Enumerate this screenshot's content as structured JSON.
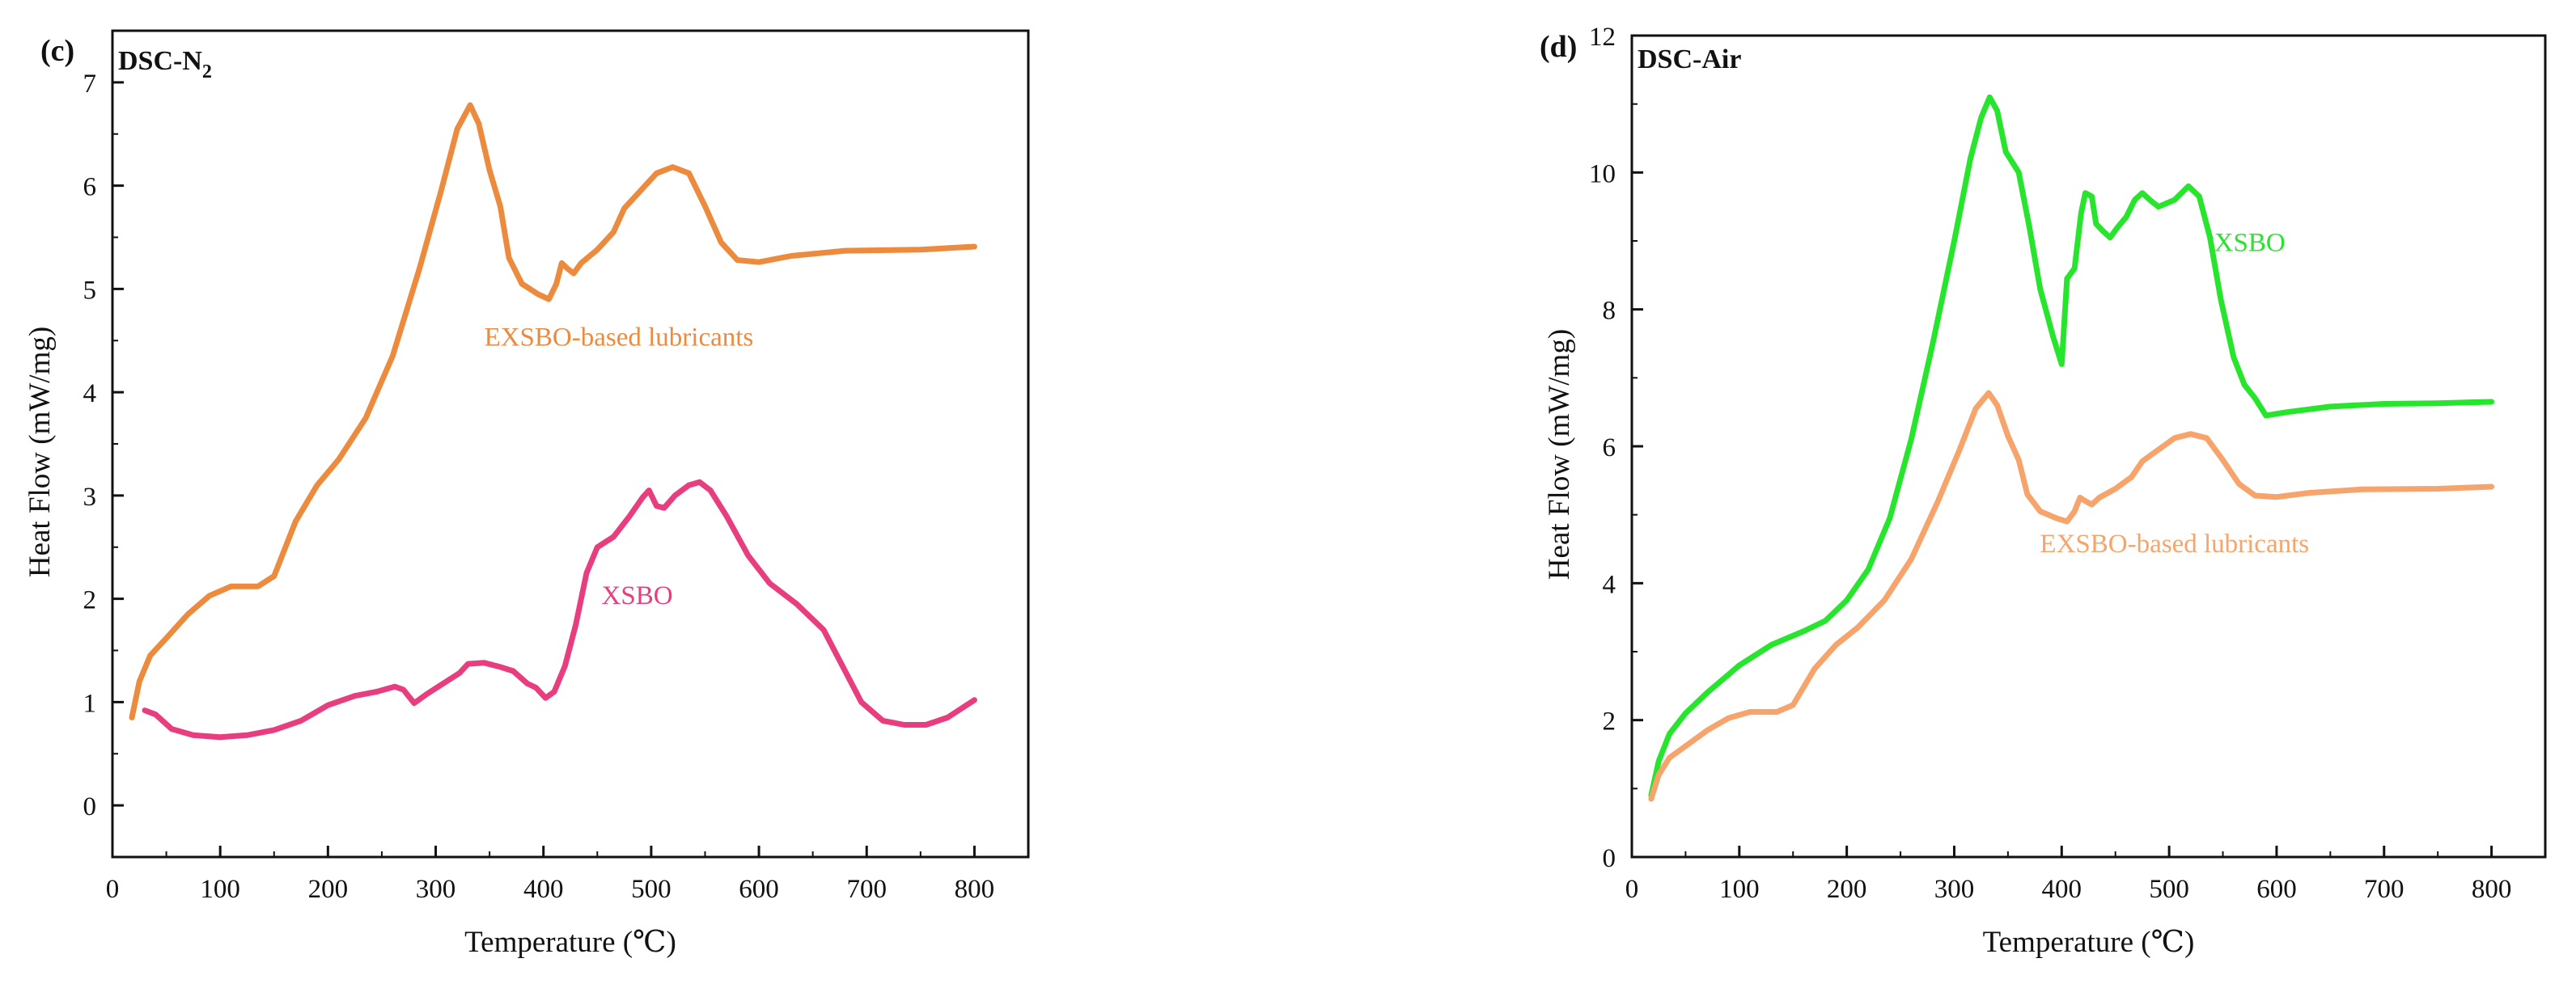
{
  "chart_data": [
    {
      "type": "line",
      "panel_label": "(c)",
      "title": "DSC-N",
      "title_subscript": "2",
      "xlabel": "Temperature (℃)",
      "ylabel": "Heat Flow (mW/mg)",
      "xlim": [
        0,
        850
      ],
      "ylim": [
        -0.5,
        7.5
      ],
      "xticks": [
        0,
        100,
        200,
        300,
        400,
        500,
        600,
        700,
        800
      ],
      "yticks": [
        0,
        1,
        2,
        3,
        4,
        5,
        6,
        7
      ],
      "series": [
        {
          "name": "EXSBO-based lubricants",
          "color": "#ec8a3d",
          "label_pos": [
            470,
            4.45
          ],
          "points": [
            [
              18,
              0.85
            ],
            [
              25,
              1.2
            ],
            [
              35,
              1.45
            ],
            [
              50,
              1.62
            ],
            [
              70,
              1.85
            ],
            [
              90,
              2.03
            ],
            [
              110,
              2.12
            ],
            [
              135,
              2.12
            ],
            [
              150,
              2.22
            ],
            [
              170,
              2.75
            ],
            [
              190,
              3.1
            ],
            [
              210,
              3.35
            ],
            [
              235,
              3.75
            ],
            [
              260,
              4.35
            ],
            [
              285,
              5.2
            ],
            [
              305,
              5.95
            ],
            [
              320,
              6.55
            ],
            [
              332,
              6.78
            ],
            [
              340,
              6.6
            ],
            [
              350,
              6.15
            ],
            [
              360,
              5.8
            ],
            [
              368,
              5.3
            ],
            [
              380,
              5.05
            ],
            [
              395,
              4.95
            ],
            [
              405,
              4.9
            ],
            [
              412,
              5.05
            ],
            [
              417,
              5.25
            ],
            [
              422,
              5.2
            ],
            [
              428,
              5.15
            ],
            [
              435,
              5.25
            ],
            [
              450,
              5.38
            ],
            [
              465,
              5.55
            ],
            [
              475,
              5.78
            ],
            [
              490,
              5.95
            ],
            [
              505,
              6.12
            ],
            [
              520,
              6.18
            ],
            [
              535,
              6.12
            ],
            [
              550,
              5.8
            ],
            [
              565,
              5.45
            ],
            [
              580,
              5.28
            ],
            [
              600,
              5.26
            ],
            [
              630,
              5.32
            ],
            [
              680,
              5.37
            ],
            [
              750,
              5.38
            ],
            [
              800,
              5.41
            ]
          ]
        },
        {
          "name": "XSBO",
          "color": "#e83e7f",
          "label_pos": [
            487,
            1.95
          ],
          "points": [
            [
              30,
              0.92
            ],
            [
              40,
              0.88
            ],
            [
              55,
              0.74
            ],
            [
              75,
              0.68
            ],
            [
              100,
              0.66
            ],
            [
              125,
              0.68
            ],
            [
              150,
              0.73
            ],
            [
              175,
              0.82
            ],
            [
              200,
              0.97
            ],
            [
              225,
              1.06
            ],
            [
              245,
              1.1
            ],
            [
              262,
              1.15
            ],
            [
              270,
              1.12
            ],
            [
              280,
              0.99
            ],
            [
              292,
              1.08
            ],
            [
              310,
              1.2
            ],
            [
              322,
              1.28
            ],
            [
              330,
              1.37
            ],
            [
              345,
              1.38
            ],
            [
              360,
              1.34
            ],
            [
              372,
              1.3
            ],
            [
              385,
              1.18
            ],
            [
              393,
              1.14
            ],
            [
              402,
              1.04
            ],
            [
              410,
              1.1
            ],
            [
              420,
              1.35
            ],
            [
              430,
              1.75
            ],
            [
              440,
              2.25
            ],
            [
              450,
              2.5
            ],
            [
              465,
              2.6
            ],
            [
              480,
              2.8
            ],
            [
              492,
              2.98
            ],
            [
              498,
              3.05
            ],
            [
              505,
              2.9
            ],
            [
              512,
              2.88
            ],
            [
              522,
              3.0
            ],
            [
              535,
              3.1
            ],
            [
              545,
              3.13
            ],
            [
              555,
              3.05
            ],
            [
              570,
              2.8
            ],
            [
              590,
              2.42
            ],
            [
              610,
              2.15
            ],
            [
              635,
              1.95
            ],
            [
              660,
              1.7
            ],
            [
              680,
              1.3
            ],
            [
              695,
              1.0
            ],
            [
              715,
              0.82
            ],
            [
              735,
              0.78
            ],
            [
              755,
              0.78
            ],
            [
              775,
              0.85
            ],
            [
              800,
              1.02
            ]
          ]
        }
      ]
    },
    {
      "type": "line",
      "panel_label": "(d)",
      "title": "DSC-Air",
      "xlabel": "Temperature (℃)",
      "ylabel": "Heat Flow (mW/mg)",
      "xlim": [
        0,
        850
      ],
      "ylim": [
        0,
        12
      ],
      "xticks": [
        0,
        100,
        200,
        300,
        400,
        500,
        600,
        700,
        800
      ],
      "yticks": [
        0,
        2,
        4,
        6,
        8,
        10,
        12
      ],
      "series": [
        {
          "name": "XSBO",
          "color": "#27e52c",
          "label_pos": [
            575,
            8.85
          ],
          "points": [
            [
              18,
              0.9
            ],
            [
              25,
              1.4
            ],
            [
              35,
              1.8
            ],
            [
              50,
              2.1
            ],
            [
              70,
              2.4
            ],
            [
              100,
              2.8
            ],
            [
              130,
              3.1
            ],
            [
              160,
              3.3
            ],
            [
              180,
              3.45
            ],
            [
              200,
              3.75
            ],
            [
              220,
              4.2
            ],
            [
              240,
              4.95
            ],
            [
              260,
              6.1
            ],
            [
              280,
              7.5
            ],
            [
              300,
              9.0
            ],
            [
              315,
              10.2
            ],
            [
              325,
              10.8
            ],
            [
              333,
              11.1
            ],
            [
              340,
              10.9
            ],
            [
              348,
              10.3
            ],
            [
              360,
              10.0
            ],
            [
              370,
              9.2
            ],
            [
              380,
              8.3
            ],
            [
              392,
              7.6
            ],
            [
              400,
              7.2
            ],
            [
              405,
              8.45
            ],
            [
              412,
              8.6
            ],
            [
              418,
              9.4
            ],
            [
              422,
              9.7
            ],
            [
              428,
              9.65
            ],
            [
              432,
              9.25
            ],
            [
              438,
              9.15
            ],
            [
              445,
              9.05
            ],
            [
              452,
              9.2
            ],
            [
              460,
              9.35
            ],
            [
              468,
              9.6
            ],
            [
              475,
              9.7
            ],
            [
              482,
              9.6
            ],
            [
              490,
              9.5
            ],
            [
              505,
              9.6
            ],
            [
              518,
              9.8
            ],
            [
              528,
              9.65
            ],
            [
              538,
              9.05
            ],
            [
              548,
              8.15
            ],
            [
              560,
              7.3
            ],
            [
              570,
              6.9
            ],
            [
              580,
              6.7
            ],
            [
              590,
              6.45
            ],
            [
              610,
              6.5
            ],
            [
              650,
              6.58
            ],
            [
              700,
              6.62
            ],
            [
              750,
              6.63
            ],
            [
              800,
              6.65
            ]
          ]
        },
        {
          "name": "EXSBO-based lubricants",
          "color": "#f7a46c",
          "label_pos": [
            505,
            4.45
          ],
          "points": [
            [
              18,
              0.85
            ],
            [
              25,
              1.2
            ],
            [
              35,
              1.45
            ],
            [
              50,
              1.62
            ],
            [
              70,
              1.85
            ],
            [
              90,
              2.03
            ],
            [
              110,
              2.12
            ],
            [
              135,
              2.12
            ],
            [
              150,
              2.22
            ],
            [
              170,
              2.75
            ],
            [
              190,
              3.1
            ],
            [
              210,
              3.35
            ],
            [
              235,
              3.75
            ],
            [
              260,
              4.35
            ],
            [
              285,
              5.2
            ],
            [
              305,
              5.95
            ],
            [
              320,
              6.55
            ],
            [
              332,
              6.78
            ],
            [
              340,
              6.6
            ],
            [
              350,
              6.15
            ],
            [
              360,
              5.8
            ],
            [
              368,
              5.3
            ],
            [
              380,
              5.05
            ],
            [
              395,
              4.95
            ],
            [
              405,
              4.9
            ],
            [
              412,
              5.05
            ],
            [
              417,
              5.25
            ],
            [
              422,
              5.2
            ],
            [
              428,
              5.15
            ],
            [
              435,
              5.25
            ],
            [
              450,
              5.38
            ],
            [
              465,
              5.55
            ],
            [
              475,
              5.78
            ],
            [
              490,
              5.95
            ],
            [
              505,
              6.12
            ],
            [
              520,
              6.18
            ],
            [
              535,
              6.12
            ],
            [
              550,
              5.8
            ],
            [
              565,
              5.45
            ],
            [
              580,
              5.28
            ],
            [
              600,
              5.26
            ],
            [
              630,
              5.32
            ],
            [
              680,
              5.37
            ],
            [
              750,
              5.38
            ],
            [
              800,
              5.41
            ]
          ]
        }
      ]
    }
  ]
}
